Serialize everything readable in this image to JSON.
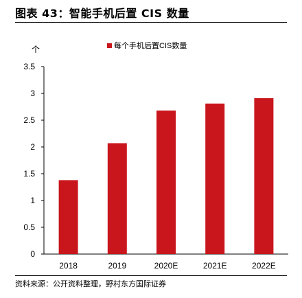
{
  "figure": {
    "title": "图表 43：智能手机后置 CIS 数量",
    "source": "资料来源：公开资料整理，野村东方国际证券"
  },
  "colors": {
    "bar": "#c9161c",
    "axis": "#000000"
  },
  "chart_data": {
    "type": "bar",
    "categories": [
      "2018",
      "2019",
      "2020E",
      "2021E",
      "2022E"
    ],
    "series": [
      {
        "name": "每个手机后置CIS数量",
        "values": [
          1.38,
          2.07,
          2.68,
          2.81,
          2.91
        ]
      }
    ],
    "ylabel": "个",
    "xlabel": "",
    "ylim": [
      0,
      3.5
    ],
    "yticks": [
      "0",
      "0.5",
      "1",
      "1.5",
      "2",
      "2.5",
      "3",
      "3.5"
    ],
    "grid": false,
    "legend_position": "top-right"
  }
}
